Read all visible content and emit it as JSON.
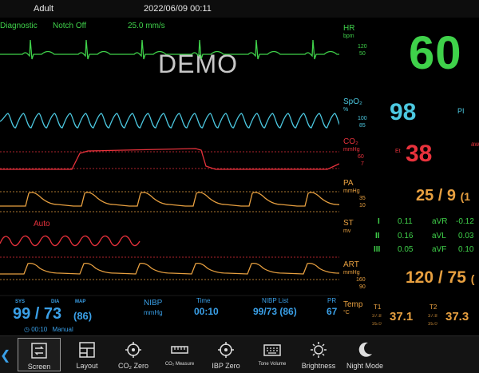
{
  "topbar": {
    "patient_type": "Adult",
    "datetime": "2022/06/09 00:11"
  },
  "ecg_header": {
    "mode": "Diagnostic",
    "notch": "Notch Off",
    "speed": "25.0 mm/s"
  },
  "watermark": "DEMO",
  "channels": {
    "hr": {
      "label": "HR",
      "unit": "bpm",
      "scale_hi": "120",
      "scale_lo": "50"
    },
    "spo2": {
      "label": "SpO₂",
      "unit": "%",
      "scale_hi": "100",
      "scale_lo": "85"
    },
    "co2": {
      "label": "CO₂",
      "unit": "mmHg",
      "scale_hi": "60",
      "scale_lo": "7"
    },
    "pa": {
      "label": "PA",
      "unit": "mmHg",
      "scale_hi": "35",
      "scale_lo": "10"
    },
    "st": {
      "label": "ST",
      "unit": "mv",
      "auto": "Auto"
    },
    "art": {
      "label": "ART",
      "unit": "mmHg",
      "scale_hi": "160",
      "scale_lo": "90"
    },
    "temp": {
      "label": "Temp",
      "unit": "°C"
    }
  },
  "vitals": {
    "hr": "60",
    "spo2": "98",
    "pi_label": "PI",
    "co2": "38",
    "co2_small_label": "Et",
    "co2_side_label": "aw",
    "pa": "25 / 9",
    "pa_mean": "(1",
    "st": {
      "I": "0.11",
      "II": "0.16",
      "III": "0.05",
      "aVR_label": "aVR",
      "aVR": "-0.12",
      "aVL_label": "aVL",
      "aVL": "0.03",
      "aVF_label": "aVF",
      "aVF": "0.10"
    },
    "art": "120 / 75",
    "art_mean": "(",
    "t1_label": "T1",
    "t1": "37.1",
    "t1_hi": "37.8",
    "t1_lo": "35.0",
    "t2_label": "T2",
    "t2": "37.3",
    "t2_hi": "37.8",
    "t2_lo": "35.0"
  },
  "nibp": {
    "sys_label": "SYS",
    "dia_label": "DIA",
    "map_label": "MAP",
    "value": "99 / 73",
    "map": "(86)",
    "time": "00:10",
    "mode": "Manual",
    "label": "NIBP",
    "unit": "mmHg",
    "time_label": "Time",
    "time_value": "00:10",
    "list_label": "NIBP List",
    "list_value": "99/73 (86)",
    "pr_label": "PR",
    "pr_value": "67"
  },
  "toolbar": [
    {
      "label": "Screen",
      "icon": "screen-icon",
      "active": true
    },
    {
      "label": "Layout",
      "icon": "layout-icon"
    },
    {
      "label": "CO₂ Zero",
      "icon": "co2-zero-icon"
    },
    {
      "label": "CO₂ Measure",
      "icon": "co2-measure-icon"
    },
    {
      "label": "IBP Zero",
      "icon": "ibp-zero-icon"
    },
    {
      "label": "Tone Volume",
      "icon": "keyboard-icon"
    },
    {
      "label": "Brightness",
      "icon": "brightness-icon"
    },
    {
      "label": "Night Mode",
      "icon": "moon-icon"
    }
  ],
  "colors": {
    "ecg": "#3fd14a",
    "spo2": "#4cc8e0",
    "co2": "#e8323c",
    "pa": "#e8a040",
    "st": "#e8323c",
    "nibp": "#3aa0e8",
    "temp": "#f0a050"
  }
}
